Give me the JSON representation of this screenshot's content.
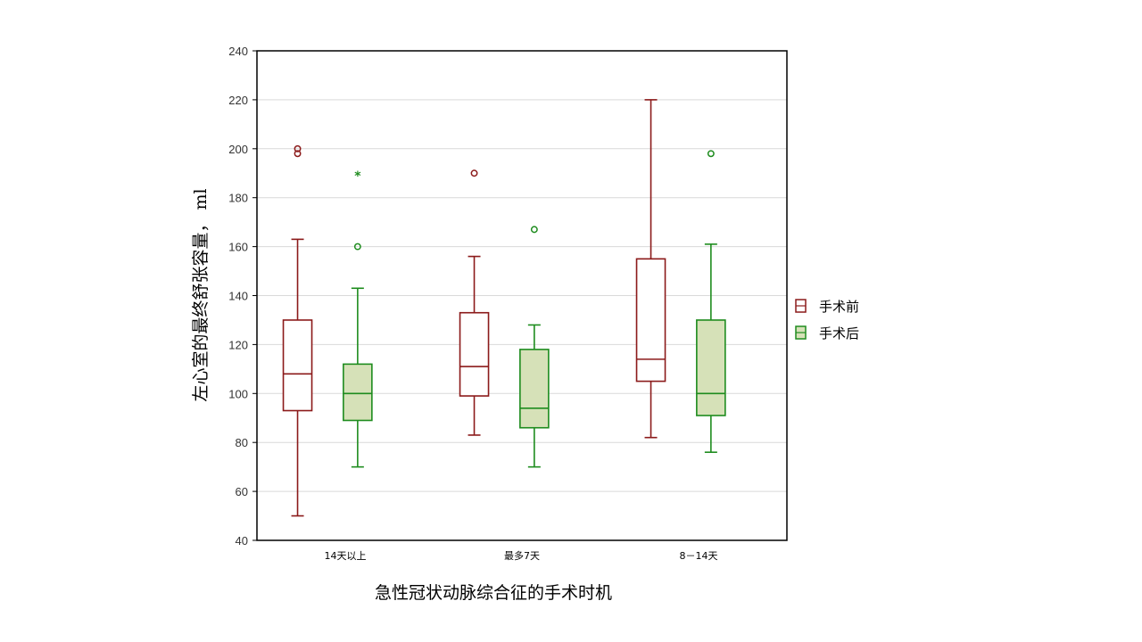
{
  "chart_data": {
    "type": "box",
    "xlabel": "急性冠状动脉综合征的手术时机",
    "ylabel": "左心室的最终舒张容量， ml",
    "ylim": [
      40,
      240
    ],
    "yticks": [
      40,
      60,
      80,
      100,
      120,
      140,
      160,
      180,
      200,
      220,
      240
    ],
    "grid": true,
    "legend_position": "right",
    "categories": [
      "14天以上",
      "最多7天",
      "8－14天"
    ],
    "series": [
      {
        "name": "手术前",
        "color": "#8b1a1a",
        "fill": "#ffffff",
        "boxes": [
          {
            "whisker_low": 50,
            "q1": 93,
            "median": 108,
            "q3": 130,
            "whisker_high": 163,
            "outliers": [
              198,
              200
            ]
          },
          {
            "whisker_low": 83,
            "q1": 99,
            "median": 111,
            "q3": 133,
            "whisker_high": 156,
            "outliers": [
              190
            ]
          },
          {
            "whisker_low": 82,
            "q1": 105,
            "median": 114,
            "q3": 155,
            "whisker_high": 220,
            "outliers": []
          }
        ]
      },
      {
        "name": "手术后",
        "color": "#1e8c1e",
        "fill": "#d6e1b8",
        "boxes": [
          {
            "whisker_low": 70,
            "q1": 89,
            "median": 100,
            "q3": 112,
            "whisker_high": 143,
            "outliers": [
              160
            ],
            "extremes": [
              189
            ]
          },
          {
            "whisker_low": 70,
            "q1": 86,
            "median": 94,
            "q3": 118,
            "whisker_high": 128,
            "outliers": [
              167
            ]
          },
          {
            "whisker_low": 76,
            "q1": 91,
            "median": 100,
            "q3": 130,
            "whisker_high": 161,
            "outliers": [
              198
            ]
          }
        ]
      }
    ]
  }
}
